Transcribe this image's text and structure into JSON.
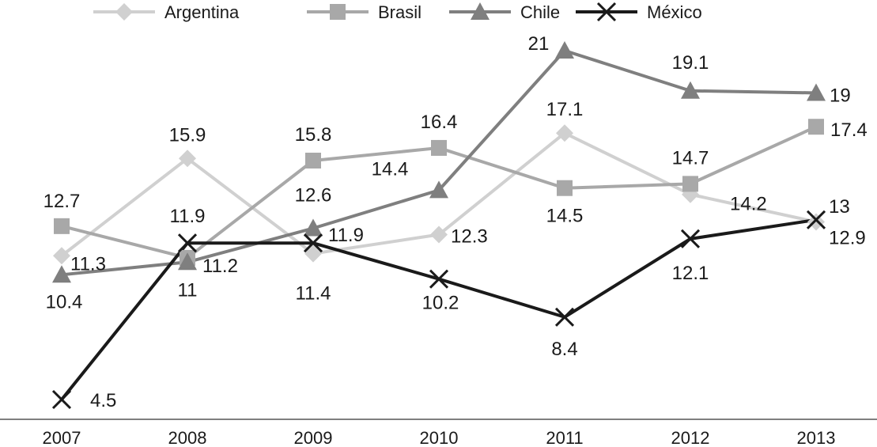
{
  "chart_data": {
    "type": "line",
    "title": "",
    "xlabel": "",
    "ylabel": "",
    "ylim": [
      4,
      21.5
    ],
    "grid": false,
    "legend_position": "top",
    "categories": [
      "2007",
      "2008",
      "2009",
      "2010",
      "2011",
      "2012",
      "2013"
    ],
    "series": [
      {
        "name": "Argentina",
        "key": "argentina",
        "color": "#d0d0d0",
        "marker": "diamond",
        "values": [
          11.3,
          15.9,
          11.4,
          12.3,
          17.1,
          14.2,
          12.9
        ],
        "labels": [
          "11.3",
          "15.9",
          "11.4",
          "12.3",
          "17.1",
          "14.2",
          "12.9"
        ]
      },
      {
        "name": "Brasil",
        "key": "brasil",
        "color": "#a8a8a8",
        "marker": "square",
        "values": [
          12.7,
          11.2,
          15.8,
          16.4,
          14.5,
          14.7,
          17.4
        ],
        "labels": [
          "12.7",
          "11.2",
          "15.8",
          "16.4",
          "14.5",
          "14.7",
          "17.4"
        ]
      },
      {
        "name": "Chile",
        "key": "chile",
        "color": "#7f7f7f",
        "marker": "triangle",
        "values": [
          10.4,
          11,
          12.6,
          14.4,
          21,
          19.1,
          19
        ],
        "labels": [
          "10.4",
          "11",
          "12.6",
          "14.4",
          "21",
          "19.1",
          "19"
        ]
      },
      {
        "name": "México",
        "key": "mexico",
        "color": "#1a1a1a",
        "marker": "x",
        "values": [
          4.5,
          11.9,
          11.9,
          10.2,
          8.4,
          12.1,
          13
        ],
        "labels": [
          "4.5",
          "11.9",
          "11.9",
          "10.2",
          "8.4",
          "12.1",
          "13"
        ]
      }
    ]
  }
}
